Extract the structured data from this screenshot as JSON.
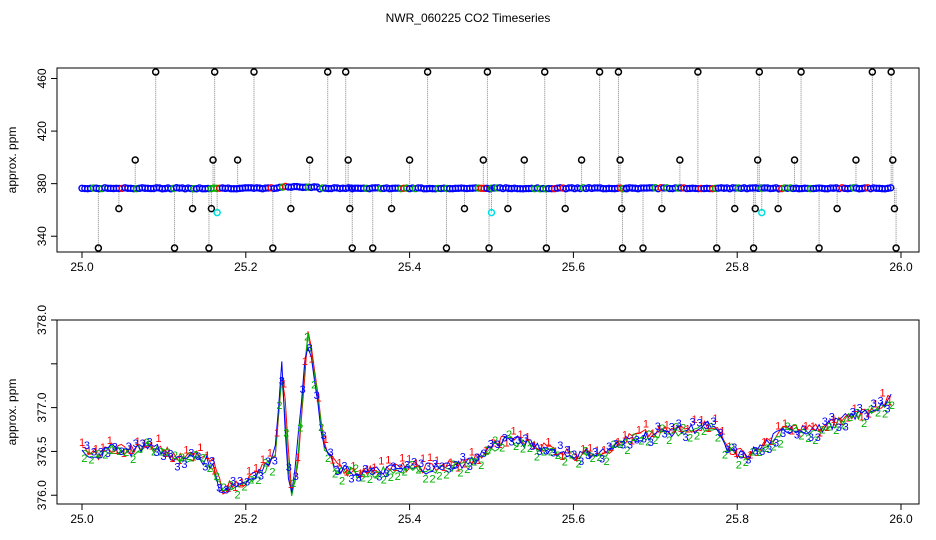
{
  "title": "NWR_060225  CO2 Timeseries",
  "colors": {
    "black": "#000000",
    "blue": "#0000ff",
    "cyan": "#00e0e0",
    "red": "#ff0000",
    "green": "#00b000",
    "gray": "#888888"
  },
  "chart_data": [
    {
      "type": "scatter",
      "panel": "top",
      "ylabel": "approx. ppm",
      "xlim": [
        25.0,
        26.0
      ],
      "ylim": [
        328,
        468
      ],
      "xticks": [
        "25.0",
        "25.2",
        "25.4",
        "25.6",
        "25.8",
        "26.0"
      ],
      "yticks": [
        "340",
        "380",
        "420",
        "460"
      ],
      "baseline_ppm": 376.5,
      "baseline_segments": [
        [
          25.0,
          25.33
        ],
        [
          25.33,
          25.5
        ],
        [
          25.5,
          25.665
        ],
        [
          25.665,
          25.83
        ],
        [
          25.83,
          25.99
        ]
      ],
      "outliers_black": [
        {
          "x": 25.02,
          "y": 331
        },
        {
          "x": 25.045,
          "y": 361
        },
        {
          "x": 25.065,
          "y": 398
        },
        {
          "x": 25.09,
          "y": 465
        },
        {
          "x": 25.113,
          "y": 331
        },
        {
          "x": 25.135,
          "y": 361
        },
        {
          "x": 25.155,
          "y": 331
        },
        {
          "x": 25.158,
          "y": 361
        },
        {
          "x": 25.16,
          "y": 398
        },
        {
          "x": 25.162,
          "y": 465
        },
        {
          "x": 25.19,
          "y": 398
        },
        {
          "x": 25.21,
          "y": 465
        },
        {
          "x": 25.233,
          "y": 331
        },
        {
          "x": 25.255,
          "y": 361
        },
        {
          "x": 25.278,
          "y": 398
        },
        {
          "x": 25.3,
          "y": 465
        },
        {
          "x": 25.322,
          "y": 465
        },
        {
          "x": 25.325,
          "y": 398
        },
        {
          "x": 25.327,
          "y": 361
        },
        {
          "x": 25.33,
          "y": 331
        },
        {
          "x": 25.355,
          "y": 331
        },
        {
          "x": 25.378,
          "y": 361
        },
        {
          "x": 25.4,
          "y": 398
        },
        {
          "x": 25.422,
          "y": 465
        },
        {
          "x": 25.445,
          "y": 331
        },
        {
          "x": 25.467,
          "y": 361
        },
        {
          "x": 25.49,
          "y": 398
        },
        {
          "x": 25.495,
          "y": 465
        },
        {
          "x": 25.497,
          "y": 331
        },
        {
          "x": 25.52,
          "y": 361
        },
        {
          "x": 25.54,
          "y": 398
        },
        {
          "x": 25.565,
          "y": 465
        },
        {
          "x": 25.567,
          "y": 331
        },
        {
          "x": 25.59,
          "y": 361
        },
        {
          "x": 25.61,
          "y": 398
        },
        {
          "x": 25.632,
          "y": 465
        },
        {
          "x": 25.655,
          "y": 465
        },
        {
          "x": 25.657,
          "y": 398
        },
        {
          "x": 25.659,
          "y": 361
        },
        {
          "x": 25.66,
          "y": 331
        },
        {
          "x": 25.685,
          "y": 331
        },
        {
          "x": 25.708,
          "y": 361
        },
        {
          "x": 25.73,
          "y": 398
        },
        {
          "x": 25.752,
          "y": 465
        },
        {
          "x": 25.775,
          "y": 331
        },
        {
          "x": 25.797,
          "y": 361
        },
        {
          "x": 25.82,
          "y": 331
        },
        {
          "x": 25.822,
          "y": 361
        },
        {
          "x": 25.825,
          "y": 398
        },
        {
          "x": 25.827,
          "y": 465
        },
        {
          "x": 25.85,
          "y": 361
        },
        {
          "x": 25.87,
          "y": 398
        },
        {
          "x": 25.878,
          "y": 465
        },
        {
          "x": 25.9,
          "y": 331
        },
        {
          "x": 25.922,
          "y": 361
        },
        {
          "x": 25.945,
          "y": 398
        },
        {
          "x": 25.965,
          "y": 465
        },
        {
          "x": 25.988,
          "y": 465
        },
        {
          "x": 25.99,
          "y": 398
        },
        {
          "x": 25.992,
          "y": 361
        },
        {
          "x": 25.994,
          "y": 331
        }
      ],
      "outliers_cyan": [
        {
          "x": 25.165,
          "y": 358
        },
        {
          "x": 25.5,
          "y": 358
        },
        {
          "x": 25.83,
          "y": 358
        }
      ]
    },
    {
      "type": "line",
      "panel": "bottom",
      "ylabel": "approx. ppm",
      "xlim": [
        25.0,
        26.0
      ],
      "ylim": [
        375.9,
        378.0
      ],
      "xticks": [
        "25.0",
        "25.2",
        "25.4",
        "25.6",
        "25.8",
        "26.0"
      ],
      "yticks": [
        "376.0",
        "376.5",
        "377.0",
        "377.5",
        "378.0"
      ],
      "series": [
        {
          "marker": "1",
          "color": "red"
        },
        {
          "marker": "2",
          "color": "green"
        },
        {
          "marker": "3",
          "color": "blue"
        }
      ],
      "points": [
        [
          25.0,
          376.5
        ],
        [
          25.02,
          376.45
        ],
        [
          25.04,
          376.55
        ],
        [
          25.06,
          376.5
        ],
        [
          25.08,
          376.58
        ],
        [
          25.1,
          376.5
        ],
        [
          25.12,
          376.4
        ],
        [
          25.14,
          376.45
        ],
        [
          25.16,
          376.35
        ],
        [
          25.17,
          376.05
        ],
        [
          25.18,
          376.1
        ],
        [
          25.2,
          376.15
        ],
        [
          25.22,
          376.3
        ],
        [
          25.235,
          376.4
        ],
        [
          25.245,
          377.5
        ],
        [
          25.25,
          376.6
        ],
        [
          25.255,
          376.0
        ],
        [
          25.262,
          376.3
        ],
        [
          25.27,
          377.2
        ],
        [
          25.275,
          377.85
        ],
        [
          25.285,
          377.3
        ],
        [
          25.295,
          376.6
        ],
        [
          25.31,
          376.3
        ],
        [
          25.34,
          376.25
        ],
        [
          25.38,
          376.3
        ],
        [
          25.42,
          376.3
        ],
        [
          25.46,
          376.35
        ],
        [
          25.48,
          376.4
        ],
        [
          25.5,
          376.55
        ],
        [
          25.52,
          376.65
        ],
        [
          25.56,
          376.55
        ],
        [
          25.6,
          376.45
        ],
        [
          25.64,
          376.5
        ],
        [
          25.67,
          376.65
        ],
        [
          25.7,
          376.7
        ],
        [
          25.74,
          376.75
        ],
        [
          25.77,
          376.8
        ],
        [
          25.79,
          376.5
        ],
        [
          25.81,
          376.45
        ],
        [
          25.83,
          376.55
        ],
        [
          25.86,
          376.75
        ],
        [
          25.9,
          376.75
        ],
        [
          25.94,
          376.9
        ],
        [
          25.96,
          376.95
        ],
        [
          25.99,
          377.1
        ]
      ]
    }
  ]
}
